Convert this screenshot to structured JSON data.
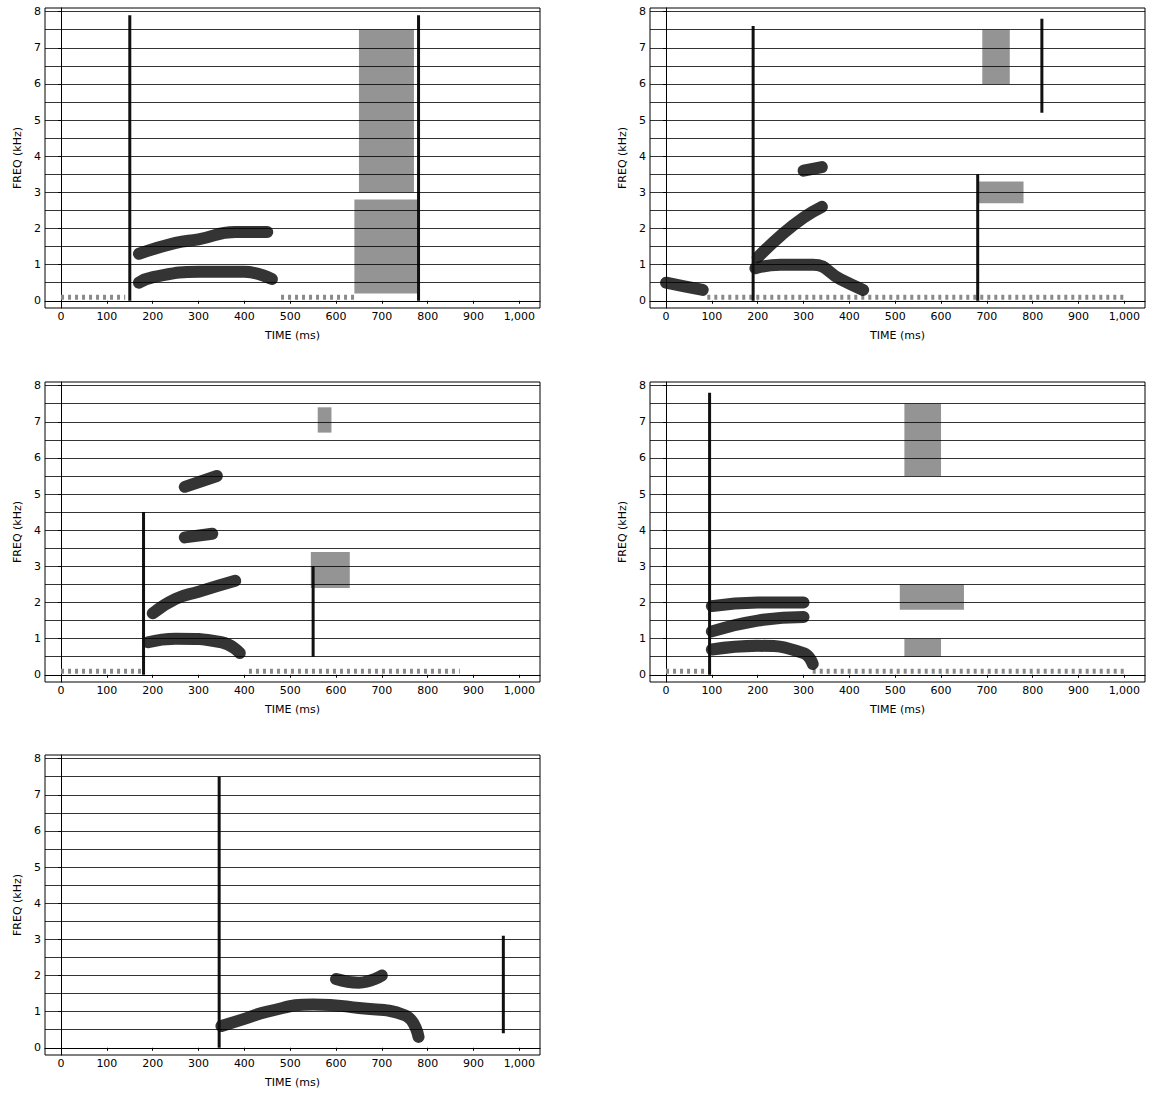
{
  "chart_data": [
    {
      "type": "spectrogram",
      "x_label": "TIME (ms)",
      "y_label": "FREQ (kHz)",
      "color": "#111111",
      "xlim": [
        -35,
        1045
      ],
      "ylim": [
        -0.2,
        8.1
      ],
      "xticks": [
        0,
        100,
        200,
        300,
        400,
        500,
        600,
        700,
        800,
        900,
        1000
      ],
      "yticks": [
        0,
        1,
        2,
        3,
        4,
        5,
        6,
        7,
        8
      ],
      "grid": true,
      "formants": [
        {
          "x": [
            170,
            200,
            300,
            400,
            460
          ],
          "y": [
            0.5,
            0.65,
            0.8,
            0.8,
            0.6
          ]
        },
        {
          "x": [
            170,
            250,
            300,
            380,
            450
          ],
          "y": [
            1.3,
            1.6,
            1.7,
            1.9,
            1.9
          ]
        }
      ],
      "bursts": [
        {
          "x": 150,
          "y": [
            0,
            7.9
          ]
        },
        {
          "x": 780,
          "y": [
            0,
            7.9
          ]
        }
      ],
      "frication": [
        {
          "x": [
            640,
            780
          ],
          "y": [
            0.2,
            2.8
          ]
        },
        {
          "x": [
            650,
            770
          ],
          "y": [
            3,
            7.5
          ]
        }
      ],
      "voicing": [
        {
          "x": [
            0,
            140
          ],
          "y": 0.1
        },
        {
          "x": [
            480,
            640
          ],
          "y": 0.1
        }
      ]
    },
    {
      "type": "spectrogram",
      "x_label": "TIME (ms)",
      "y_label": "FREQ (kHz)",
      "color": "#111111",
      "xlim": [
        -35,
        1045
      ],
      "ylim": [
        -0.2,
        8.1
      ],
      "xticks": [
        0,
        100,
        200,
        300,
        400,
        500,
        600,
        700,
        800,
        900,
        1000
      ],
      "yticks": [
        0,
        1,
        2,
        3,
        4,
        5,
        6,
        7,
        8
      ],
      "grid": true,
      "formants": [
        {
          "x": [
            0,
            40,
            80
          ],
          "y": [
            0.5,
            0.4,
            0.3
          ]
        },
        {
          "x": [
            195,
            250,
            320,
            380,
            430
          ],
          "y": [
            0.9,
            1.0,
            1.0,
            0.6,
            0.3
          ]
        },
        {
          "x": [
            200,
            250,
            300,
            340
          ],
          "y": [
            1.2,
            1.8,
            2.3,
            2.6
          ]
        },
        {
          "x": [
            300,
            340
          ],
          "y": [
            3.6,
            3.7
          ]
        }
      ],
      "bursts": [
        {
          "x": 190,
          "y": [
            0,
            7.6
          ]
        },
        {
          "x": 680,
          "y": [
            0,
            3.5
          ]
        },
        {
          "x": 820,
          "y": [
            5.2,
            7.8
          ]
        }
      ],
      "frication": [
        {
          "x": [
            680,
            780
          ],
          "y": [
            2.7,
            3.3
          ]
        },
        {
          "x": [
            690,
            750
          ],
          "y": [
            6,
            7.5
          ]
        }
      ],
      "voicing": [
        {
          "x": [
            90,
            1000
          ],
          "y": 0.1
        }
      ]
    },
    {
      "type": "spectrogram",
      "x_label": "TIME (ms)",
      "y_label": "FREQ (kHz)",
      "color": "#111111",
      "xlim": [
        -35,
        1045
      ],
      "ylim": [
        -0.2,
        8.1
      ],
      "xticks": [
        0,
        100,
        200,
        300,
        400,
        500,
        600,
        700,
        800,
        900,
        1000
      ],
      "yticks": [
        0,
        1,
        2,
        3,
        4,
        5,
        6,
        7,
        8
      ],
      "grid": true,
      "formants": [
        {
          "x": [
            190,
            250,
            350,
            390
          ],
          "y": [
            0.9,
            1.0,
            0.9,
            0.6
          ]
        },
        {
          "x": [
            200,
            250,
            300,
            380
          ],
          "y": [
            1.7,
            2.1,
            2.3,
            2.6
          ]
        },
        {
          "x": [
            270,
            330
          ],
          "y": [
            3.8,
            3.9
          ]
        },
        {
          "x": [
            270,
            340
          ],
          "y": [
            5.2,
            5.5
          ]
        }
      ],
      "bursts": [
        {
          "x": 180,
          "y": [
            0,
            4.5
          ]
        },
        {
          "x": 550,
          "y": [
            0.5,
            3
          ]
        }
      ],
      "frication": [
        {
          "x": [
            545,
            630
          ],
          "y": [
            2.4,
            3.4
          ]
        },
        {
          "x": [
            560,
            590
          ],
          "y": [
            6.7,
            7.4
          ]
        }
      ],
      "voicing": [
        {
          "x": [
            0,
            180
          ],
          "y": 0.1
        },
        {
          "x": [
            410,
            870
          ],
          "y": 0.1
        }
      ]
    },
    {
      "type": "spectrogram",
      "x_label": "TIME (ms)",
      "y_label": "FREQ (kHz)",
      "color": "#111111",
      "xlim": [
        -35,
        1045
      ],
      "ylim": [
        -0.2,
        8.1
      ],
      "xticks": [
        0,
        100,
        200,
        300,
        400,
        500,
        600,
        700,
        800,
        900,
        1000
      ],
      "yticks": [
        0,
        1,
        2,
        3,
        4,
        5,
        6,
        7,
        8
      ],
      "grid": true,
      "formants": [
        {
          "x": [
            100,
            200,
            300,
            320
          ],
          "y": [
            0.7,
            0.8,
            0.6,
            0.3
          ]
        },
        {
          "x": [
            100,
            200,
            300
          ],
          "y": [
            1.2,
            1.5,
            1.6
          ]
        },
        {
          "x": [
            100,
            200,
            300
          ],
          "y": [
            1.9,
            2.0,
            2.0
          ]
        }
      ],
      "bursts": [
        {
          "x": 95,
          "y": [
            0,
            7.8
          ]
        }
      ],
      "frication": [
        {
          "x": [
            520,
            600
          ],
          "y": [
            5.5,
            7.5
          ]
        },
        {
          "x": [
            510,
            650
          ],
          "y": [
            1.8,
            2.5
          ]
        },
        {
          "x": [
            520,
            600
          ],
          "y": [
            0.5,
            1
          ]
        }
      ],
      "voicing": [
        {
          "x": [
            0,
            100
          ],
          "y": 0.1
        },
        {
          "x": [
            320,
            1000
          ],
          "y": 0.1
        }
      ]
    },
    {
      "type": "spectrogram",
      "x_label": "TIME (ms)",
      "y_label": "FREQ (kHz)",
      "color": "#111111",
      "xlim": [
        -35,
        1045
      ],
      "ylim": [
        -0.2,
        8.1
      ],
      "xticks": [
        0,
        100,
        200,
        300,
        400,
        500,
        600,
        700,
        800,
        900,
        1000
      ],
      "yticks": [
        0,
        1,
        2,
        3,
        4,
        5,
        6,
        7,
        8
      ],
      "grid": true,
      "formants": [
        {
          "x": [
            350,
            400,
            450,
            550,
            650,
            750,
            780
          ],
          "y": [
            0.6,
            0.8,
            1.0,
            1.2,
            1.1,
            0.9,
            0.3
          ]
        },
        {
          "x": [
            600,
            650,
            700
          ],
          "y": [
            1.9,
            1.8,
            2.0
          ]
        }
      ],
      "bursts": [
        {
          "x": 345,
          "y": [
            0,
            7.5
          ]
        },
        {
          "x": 965,
          "y": [
            0.4,
            3.1
          ]
        }
      ],
      "frication": [],
      "voicing": []
    }
  ]
}
